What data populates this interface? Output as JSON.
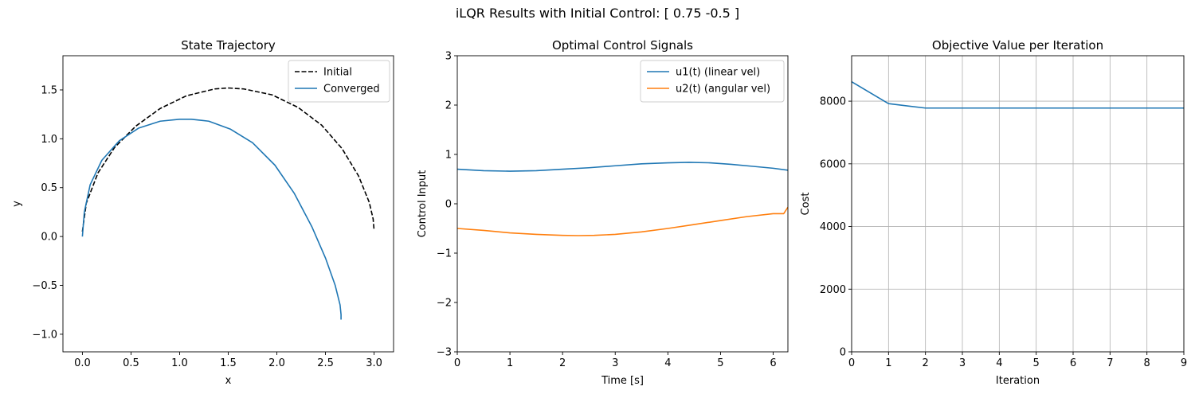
{
  "figure": {
    "suptitle": "iLQR Results with Initial Control: [ 0.75 -0.5 ]"
  },
  "chart_data": [
    {
      "type": "line",
      "title": "State Trajectory",
      "xlabel": "x",
      "ylabel": "y",
      "xlim": [
        -0.2,
        3.2
      ],
      "ylim": [
        -1.18,
        1.85
      ],
      "xticks": [
        "0.0",
        "0.5",
        "1.0",
        "1.5",
        "2.0",
        "2.5",
        "3.0"
      ],
      "yticks": [
        "-1.0",
        "-0.5",
        "0.0",
        "0.5",
        "1.0",
        "1.5"
      ],
      "grid": false,
      "legend": "top-right",
      "series": [
        {
          "name": "Initial",
          "color": "#000000",
          "dashed": true,
          "x": [
            0.0,
            0.04,
            0.16,
            0.33,
            0.55,
            0.8,
            1.07,
            1.36,
            1.5,
            1.66,
            1.95,
            2.22,
            2.46,
            2.67,
            2.84,
            2.95,
            2.99,
            3.0
          ],
          "y": [
            0.05,
            0.34,
            0.65,
            0.91,
            1.13,
            1.31,
            1.44,
            1.51,
            1.52,
            1.51,
            1.45,
            1.32,
            1.14,
            0.9,
            0.62,
            0.35,
            0.18,
            0.06
          ]
        },
        {
          "name": "Converged",
          "color": "#1f77b4",
          "dashed": false,
          "x": [
            0.0,
            0.02,
            0.08,
            0.2,
            0.38,
            0.58,
            0.8,
            1.0,
            1.12,
            1.3,
            1.52,
            1.75,
            1.98,
            2.18,
            2.36,
            2.5,
            2.6,
            2.65,
            2.66,
            2.66
          ],
          "y": [
            0.0,
            0.25,
            0.53,
            0.78,
            0.98,
            1.11,
            1.18,
            1.2,
            1.2,
            1.18,
            1.1,
            0.96,
            0.73,
            0.44,
            0.1,
            -0.22,
            -0.5,
            -0.7,
            -0.8,
            -0.85
          ]
        }
      ]
    },
    {
      "type": "line",
      "title": "Optimal Control Signals",
      "xlabel": "Time [s]",
      "ylabel": "Control Input",
      "xlim": [
        0,
        6.28
      ],
      "ylim": [
        -3,
        3
      ],
      "xticks": [
        "0",
        "1",
        "2",
        "3",
        "4",
        "5",
        "6"
      ],
      "yticks": [
        "-3",
        "-2",
        "-1",
        "0",
        "1",
        "2",
        "3"
      ],
      "grid": false,
      "legend": "top-right",
      "series": [
        {
          "name": "u1(t) (linear vel)",
          "color": "#1f77b4",
          "x": [
            0,
            0.5,
            1.0,
            1.5,
            2.0,
            2.5,
            3.0,
            3.5,
            4.0,
            4.4,
            4.8,
            5.2,
            5.6,
            6.0,
            6.28
          ],
          "y": [
            0.7,
            0.67,
            0.66,
            0.67,
            0.7,
            0.73,
            0.77,
            0.81,
            0.83,
            0.84,
            0.83,
            0.8,
            0.76,
            0.72,
            0.68
          ]
        },
        {
          "name": "u2(t) (angular vel)",
          "color": "#ff7f0e",
          "x": [
            0,
            0.5,
            1.0,
            1.5,
            2.0,
            2.3,
            2.6,
            3.0,
            3.5,
            4.0,
            4.5,
            5.0,
            5.5,
            6.0,
            6.2,
            6.28
          ],
          "y": [
            -0.5,
            -0.54,
            -0.59,
            -0.62,
            -0.64,
            -0.645,
            -0.64,
            -0.62,
            -0.57,
            -0.5,
            -0.42,
            -0.34,
            -0.26,
            -0.2,
            -0.2,
            -0.07
          ]
        }
      ]
    },
    {
      "type": "line",
      "title": "Objective Value per Iteration",
      "xlabel": "Iteration",
      "ylabel": "Cost",
      "xlim": [
        0,
        9
      ],
      "ylim": [
        0,
        9450
      ],
      "xticks": [
        "0",
        "1",
        "2",
        "3",
        "4",
        "5",
        "6",
        "7",
        "8",
        "9"
      ],
      "yticks": [
        "0",
        "2000",
        "4000",
        "6000",
        "8000"
      ],
      "grid": true,
      "legend": "none",
      "series": [
        {
          "color": "#1f77b4",
          "x": [
            0,
            1,
            2,
            3,
            4,
            5,
            6,
            7,
            8,
            9
          ],
          "y": [
            8620,
            7920,
            7780,
            7780,
            7780,
            7780,
            7780,
            7780,
            7780,
            7780
          ]
        }
      ]
    }
  ]
}
